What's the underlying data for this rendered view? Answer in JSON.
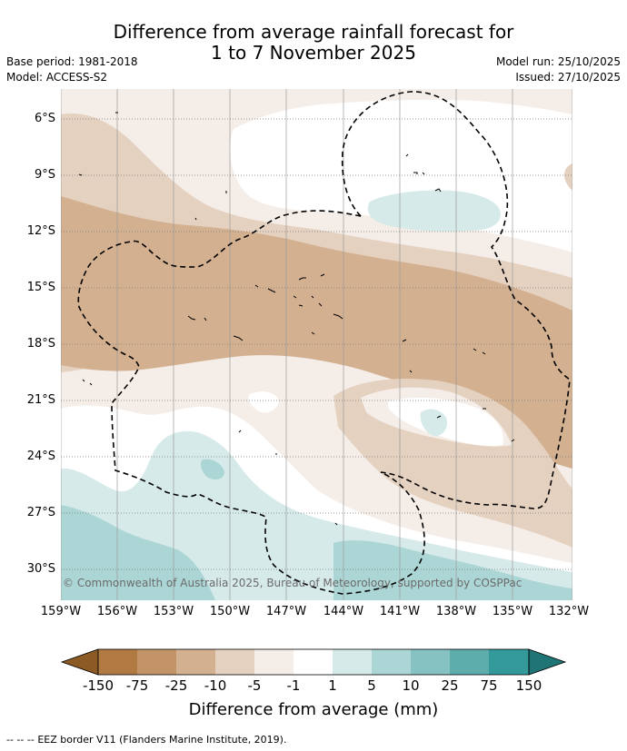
{
  "title": {
    "line1": "Difference from average rainfall forecast for",
    "line2": "1 to 7 November 2025"
  },
  "meta": {
    "base_period": "Base period: 1981-2018",
    "model": "Model: ACCESS-S2",
    "model_run": "Model run: 25/10/2025",
    "issued": "Issued: 27/10/2025"
  },
  "map": {
    "copyright": "© Commonwealth of Australia 2025, Bureau of Meteorology, supported by COSPPac",
    "lat_labels": [
      "6°S",
      "9°S",
      "12°S",
      "15°S",
      "18°S",
      "21°S",
      "24°S",
      "27°S",
      "30°S"
    ],
    "lon_labels": [
      "159°W",
      "156°W",
      "153°W",
      "150°W",
      "147°W",
      "144°W",
      "141°W",
      "138°W",
      "135°W",
      "132°W"
    ]
  },
  "colorbar": {
    "label": "Difference from average (mm)",
    "ticks": [
      "-150",
      "-75",
      "-25",
      "-10",
      "-5",
      "-1",
      "1",
      "5",
      "10",
      "25",
      "75",
      "150"
    ],
    "colors": {
      "below_min": "#8c5a24",
      "-150_to_-75": "#b07a42",
      "-75_to_-25": "#c39468",
      "-25_to_-10": "#d3b090",
      "-10_to_-5": "#e5d1c0",
      "-5_to_-1": "#f5ede8",
      "-1_to_1": "#ffffff",
      "1_to_5": "#d6eae9",
      "5_to_10": "#acd6d5",
      "10_to_25": "#87c2c2",
      "25_to_75": "#5dadad",
      "75_to_150": "#33999a",
      "above_max": "#1f7576"
    }
  },
  "footer": {
    "legend_symbol": "-- -- --",
    "legend_text": "EEZ border V11 (Flanders Marine Institute, 2019)."
  }
}
